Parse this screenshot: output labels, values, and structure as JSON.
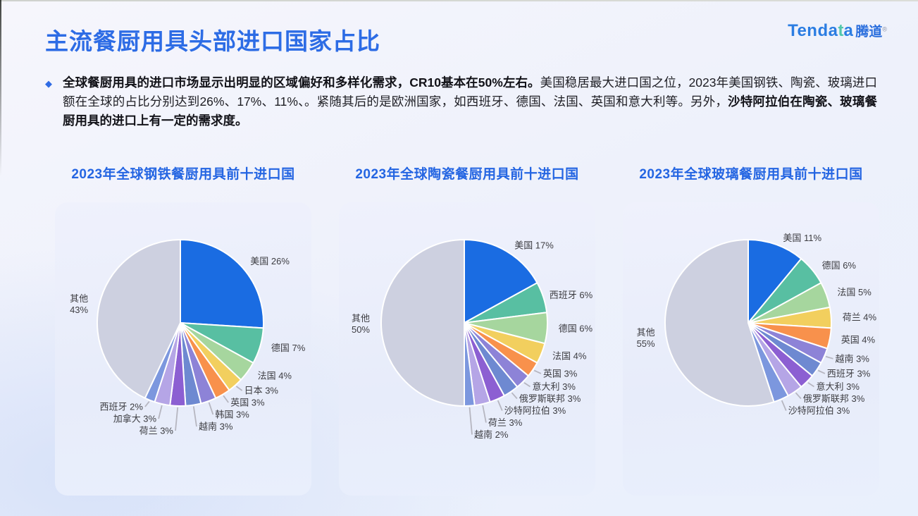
{
  "header": {
    "title": "主流餐厨用具头部进口国家占比"
  },
  "logo": {
    "part1": "Tenda",
    "part2": "t",
    "part3": "a",
    "cn": "腾道",
    "reg": "®"
  },
  "summary": {
    "marker": "◆",
    "segments": [
      {
        "text": "全球餐厨用具的进口市场显示出明显的区域偏好和多样化需求，CR10基本在50%左右。",
        "bold": true
      },
      {
        "text": "美国稳居最大进口国之位，2023年美国钢铁、陶瓷、玻璃进口额在全球的占比分别达到26%、17%、11%、。紧随其后的是欧洲国家，如西班牙、德国、法国、英国和意大利等。另外，",
        "bold": false
      },
      {
        "text": "沙特阿拉伯在陶瓷、玻璃餐厨用具的进口上有一定的需求度。",
        "bold": true
      }
    ]
  },
  "palette": [
    "#1a6ce2",
    "#58bfa2",
    "#a6d69e",
    "#f2cf5e",
    "#f8914c",
    "#8d83d7",
    "#6e89d1",
    "#8c5fd2",
    "#b5a5e6",
    "#7c97de",
    "#cdd0e0"
  ],
  "pie_style": {
    "label_color": "#3d3d42",
    "leader_color": "#b6b6c0",
    "slice_stroke": "#ffffff"
  },
  "chart_data": [
    {
      "type": "pie",
      "title": "2023年全球钢铁餐厨用具前十进口国",
      "unit": "%",
      "start_angle_deg": 0,
      "direction": "clockwise",
      "labels": [
        "美国",
        "德国",
        "法国",
        "日本",
        "英国",
        "韩国",
        "越南",
        "荷兰",
        "加拿大",
        "西班牙",
        "其他"
      ],
      "values": [
        26,
        7,
        4,
        3,
        3,
        3,
        3,
        3,
        3,
        2,
        43
      ]
    },
    {
      "type": "pie",
      "title": "2023年全球陶瓷餐厨用具前十进口国",
      "unit": "%",
      "start_angle_deg": 0,
      "direction": "clockwise",
      "labels": [
        "美国",
        "西班牙",
        "德国",
        "法国",
        "英国",
        "意大利",
        "俄罗斯联邦",
        "沙特阿拉伯",
        "荷兰",
        "越南",
        "其他"
      ],
      "values": [
        17,
        6,
        6,
        4,
        3,
        3,
        3,
        3,
        3,
        2,
        50
      ]
    },
    {
      "type": "pie",
      "title": "2023年全球玻璃餐厨用具前十进口国",
      "unit": "%",
      "start_angle_deg": 0,
      "direction": "clockwise",
      "labels": [
        "美国",
        "德国",
        "法国",
        "荷兰",
        "英国",
        "越南",
        "西班牙",
        "意大利",
        "俄罗斯联邦",
        "沙特阿拉伯",
        "其他"
      ],
      "values": [
        11,
        6,
        5,
        4,
        4,
        3,
        3,
        3,
        3,
        3,
        55
      ]
    }
  ]
}
